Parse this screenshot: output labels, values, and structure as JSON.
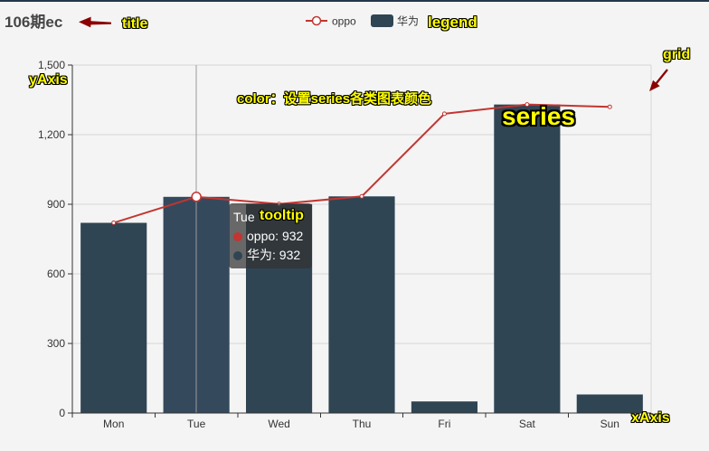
{
  "annotations": {
    "title": "title",
    "legend": "legend",
    "grid": "grid",
    "yAxis": "yAxis",
    "color_note": "color：设置series各类图表颜色",
    "series": "series",
    "tooltip": "tooltip",
    "xAxis": "xAxis",
    "text_color": "#ffff00",
    "arrow_color": "#8b0000"
  },
  "tooltip": {
    "category": "Tue",
    "items": [
      {
        "name": "oppo",
        "value": 932
      },
      {
        "name": "华为",
        "value": 932
      }
    ]
  },
  "chart_data": {
    "type": "bar",
    "title": "106期ec",
    "categories": [
      "Mon",
      "Tue",
      "Wed",
      "Thu",
      "Fri",
      "Sat",
      "Sun"
    ],
    "series": [
      {
        "name": "oppo",
        "type": "line",
        "color": "#c23531",
        "values": [
          820,
          932,
          901,
          934,
          1290,
          1330,
          1320
        ]
      },
      {
        "name": "华为",
        "type": "bar",
        "color": "#2f4554",
        "values": [
          820,
          932,
          901,
          934,
          50,
          1330,
          80
        ]
      }
    ],
    "ylim": [
      0,
      1500
    ],
    "yticks": [
      0,
      300,
      600,
      900,
      1200,
      1500
    ],
    "grid": true,
    "legend_position": "top-center"
  }
}
